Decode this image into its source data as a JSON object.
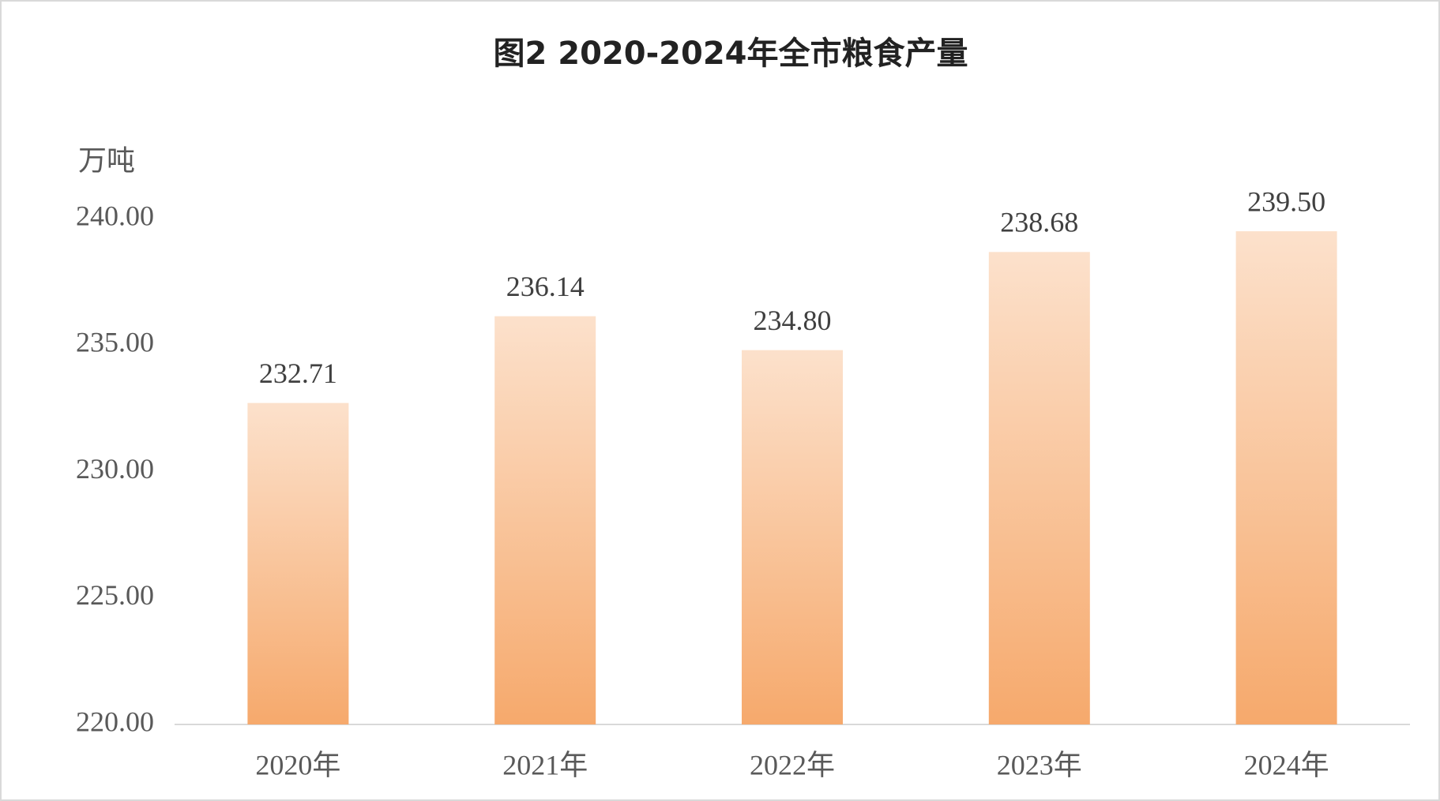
{
  "chart_data": {
    "type": "bar",
    "title": "图2 2020-2024年全市粮食产量",
    "y_label": "万吨",
    "categories": [
      "2020年",
      "2021年",
      "2022年",
      "2023年",
      "2024年"
    ],
    "values": [
      232.71,
      236.14,
      234.8,
      238.68,
      239.5
    ],
    "value_labels": [
      "232.71",
      "236.14",
      "234.80",
      "238.68",
      "239.50"
    ],
    "color": "#f6a96c",
    "ylim": [
      220,
      240
    ],
    "yticks": [
      {
        "value": 220,
        "label": "220.00"
      },
      {
        "value": 225,
        "label": "225.00"
      },
      {
        "value": 230,
        "label": "230.00"
      },
      {
        "value": 235,
        "label": "235.00"
      },
      {
        "value": 240,
        "label": "240.00"
      }
    ],
    "grid": false
  }
}
